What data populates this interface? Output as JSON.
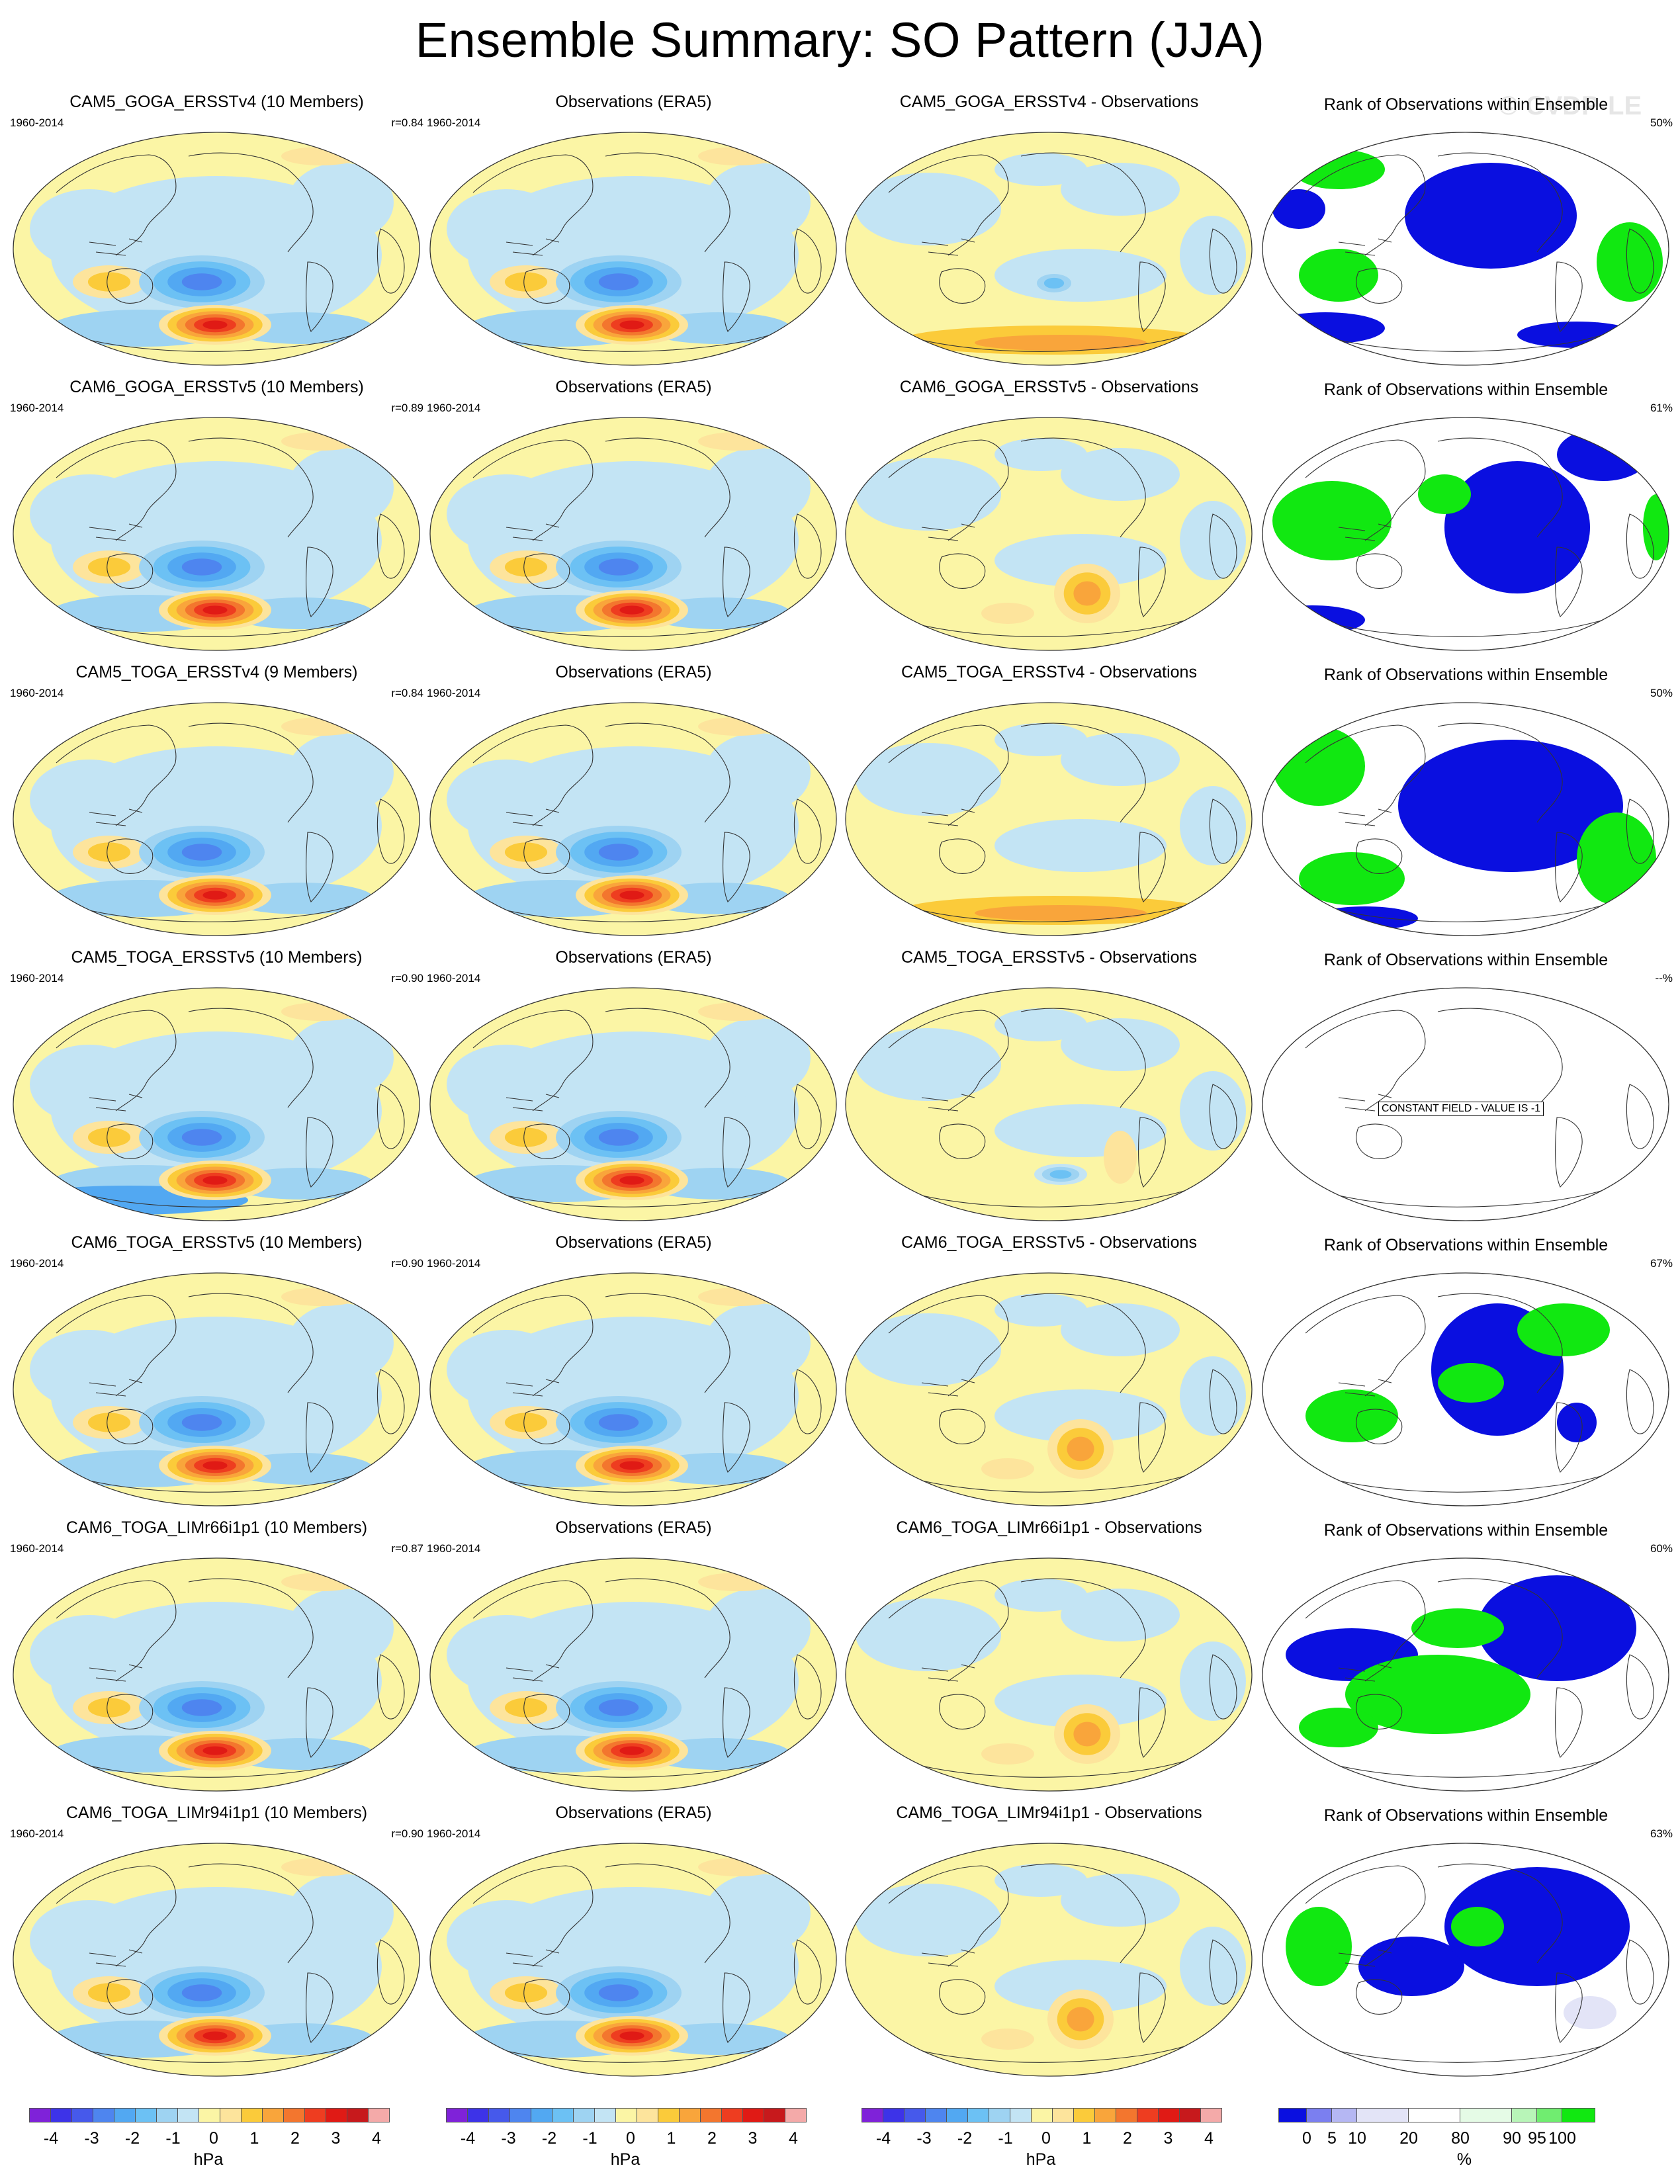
{
  "title": "Ensemble Summary: SO Pattern (JJA)",
  "watermark": "© CVDP-LE",
  "colors": {
    "hpa_palette": [
      "#7f22d9",
      "#3d33e8",
      "#4659eb",
      "#4e85ef",
      "#52a8f2",
      "#6cc1f4",
      "#9ed3f2",
      "#c3e4f4",
      "#fbf5a5",
      "#fde49c",
      "#fbcb3a",
      "#f9a53b",
      "#f3762e",
      "#ee3d20",
      "#e01a15",
      "#c7191c",
      "#f4aaa9"
    ],
    "rank_palette": [
      "#0a0fe0",
      "#7b7ff0",
      "#b5b7f3",
      "#e3e4f7",
      "#ffffff",
      "#e5fbe6",
      "#b8f5b8",
      "#70ed70",
      "#11e811"
    ]
  },
  "colorbar_hpa": {
    "ticks": [
      "-4",
      "-3",
      "-2",
      "-1",
      "0",
      "1",
      "2",
      "3",
      "4"
    ],
    "unit": "hPa"
  },
  "colorbar_rank": {
    "ticks": [
      "0",
      "5",
      "10",
      "20",
      "80",
      "90",
      "95",
      "100"
    ],
    "unit": "%"
  },
  "rows": [
    {
      "model": {
        "title": "CAM5_GOGA_ERSSTv4 (10 Members)",
        "period": "1960-2014",
        "corr": "r=0.84"
      },
      "obs": {
        "title": "Observations (ERA5)",
        "period": "1960-2014"
      },
      "diff": {
        "title": "CAM5_GOGA_ERSSTv4 - Observations"
      },
      "rank": {
        "title": "Rank of Observations within Ensemble",
        "pct": "50%"
      }
    },
    {
      "model": {
        "title": "CAM6_GOGA_ERSSTv5 (10 Members)",
        "period": "1960-2014",
        "corr": "r=0.89"
      },
      "obs": {
        "title": "Observations (ERA5)",
        "period": "1960-2014"
      },
      "diff": {
        "title": "CAM6_GOGA_ERSSTv5 - Observations"
      },
      "rank": {
        "title": "Rank of Observations within Ensemble",
        "pct": "61%"
      }
    },
    {
      "model": {
        "title": "CAM5_TOGA_ERSSTv4 (9 Members)",
        "period": "1960-2014",
        "corr": "r=0.84"
      },
      "obs": {
        "title": "Observations (ERA5)",
        "period": "1960-2014"
      },
      "diff": {
        "title": "CAM5_TOGA_ERSSTv4 - Observations"
      },
      "rank": {
        "title": "Rank of Observations within Ensemble",
        "pct": "50%"
      }
    },
    {
      "model": {
        "title": "CAM5_TOGA_ERSSTv5 (10 Members)",
        "period": "1960-2014",
        "corr": "r=0.90"
      },
      "obs": {
        "title": "Observations (ERA5)",
        "period": "1960-2014"
      },
      "diff": {
        "title": "CAM5_TOGA_ERSSTv5 - Observations"
      },
      "rank": {
        "title": "Rank of Observations within Ensemble",
        "pct": "--%",
        "constant_field": "CONSTANT FIELD - VALUE IS -1"
      }
    },
    {
      "model": {
        "title": "CAM6_TOGA_ERSSTv5 (10 Members)",
        "period": "1960-2014",
        "corr": "r=0.90"
      },
      "obs": {
        "title": "Observations (ERA5)",
        "period": "1960-2014"
      },
      "diff": {
        "title": "CAM6_TOGA_ERSSTv5 - Observations"
      },
      "rank": {
        "title": "Rank of Observations within Ensemble",
        "pct": "67%"
      }
    },
    {
      "model": {
        "title": "CAM6_TOGA_LIMr66i1p1 (10 Members)",
        "period": "1960-2014",
        "corr": "r=0.87"
      },
      "obs": {
        "title": "Observations (ERA5)",
        "period": "1960-2014"
      },
      "diff": {
        "title": "CAM6_TOGA_LIMr66i1p1 - Observations"
      },
      "rank": {
        "title": "Rank of Observations within Ensemble",
        "pct": "60%"
      }
    },
    {
      "model": {
        "title": "CAM6_TOGA_LIMr94i1p1 (10 Members)",
        "period": "1960-2014",
        "corr": "r=0.90"
      },
      "obs": {
        "title": "Observations (ERA5)",
        "period": "1960-2014"
      },
      "diff": {
        "title": "CAM6_TOGA_LIMr94i1p1 - Observations"
      },
      "rank": {
        "title": "Rank of Observations within Ensemble",
        "pct": "63%"
      }
    }
  ]
}
